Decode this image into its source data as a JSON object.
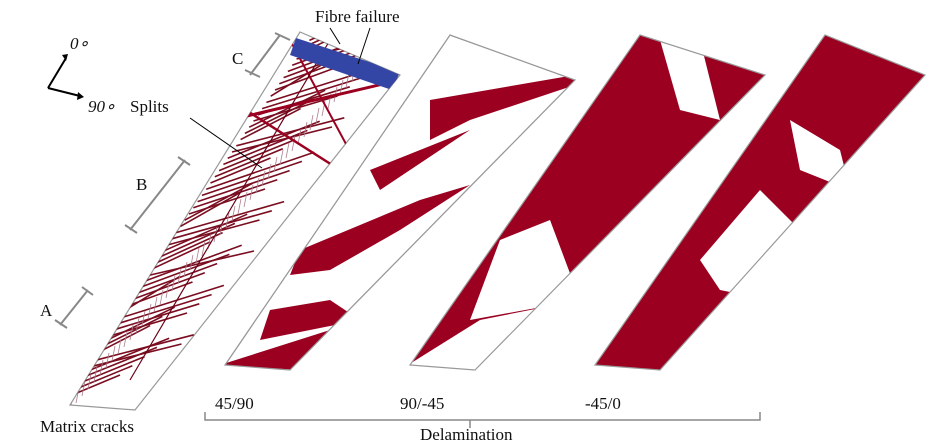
{
  "orientation": {
    "zero": "0∘",
    "ninety": "90∘"
  },
  "labels": {
    "fibre_failure": "Fibre failure",
    "c": "C",
    "splits": "Splits",
    "b": "B",
    "a": "A",
    "matrix_cracks": "Matrix cracks"
  },
  "interfaces": [
    "45/90",
    "90/-45",
    "-45/0"
  ],
  "group_label": "Delamination"
}
